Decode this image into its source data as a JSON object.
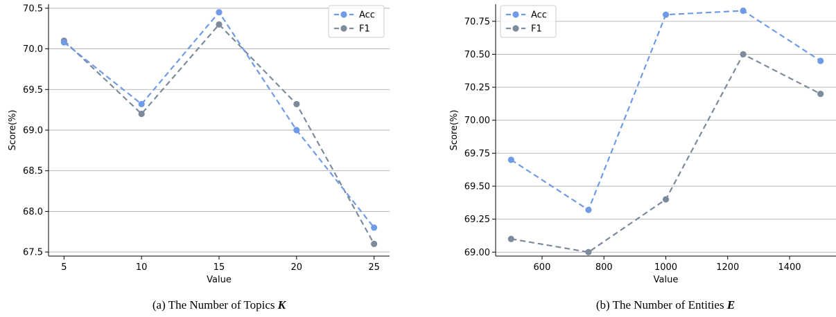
{
  "chart_data": [
    {
      "type": "line",
      "caption": {
        "prefix": "(a)  The Number of Topics ",
        "var": "K"
      },
      "xlabel": "Value",
      "ylabel": "Score(%)",
      "x": [
        5,
        10,
        15,
        20,
        25
      ],
      "xticks": [
        "5",
        "10",
        "15",
        "20",
        "25"
      ],
      "xlim": [
        4.0,
        26.0
      ],
      "ylim": [
        67.45,
        70.55
      ],
      "yticks": [
        "67.5",
        "68.0",
        "68.5",
        "69.0",
        "69.5",
        "70.0",
        "70.5"
      ],
      "ytick_values": [
        67.5,
        68.0,
        68.5,
        69.0,
        69.5,
        70.0,
        70.5
      ],
      "grid": "horizontal",
      "legend_position": "top-right",
      "series": [
        {
          "name": "Acc",
          "color": "#6f9be6",
          "values": [
            70.08,
            69.32,
            70.45,
            69.0,
            67.8
          ]
        },
        {
          "name": "F1",
          "color": "#7c8a9a",
          "values": [
            70.1,
            69.2,
            70.3,
            69.32,
            67.6
          ]
        }
      ]
    },
    {
      "type": "line",
      "caption": {
        "prefix": "(b)  The Number of Entities ",
        "var": "E"
      },
      "xlabel": "Value",
      "ylabel": "Score(%)",
      "x": [
        500,
        750,
        1000,
        1250,
        1500
      ],
      "xticks": [
        "600",
        "800",
        "1000",
        "1200",
        "1400"
      ],
      "xtick_values": [
        600,
        800,
        1000,
        1200,
        1400
      ],
      "xlim": [
        450,
        1550
      ],
      "ylim": [
        68.97,
        70.88
      ],
      "yticks": [
        "69.00",
        "69.25",
        "69.50",
        "69.75",
        "70.00",
        "70.25",
        "70.50",
        "70.75"
      ],
      "ytick_values": [
        69.0,
        69.25,
        69.5,
        69.75,
        70.0,
        70.25,
        70.5,
        70.75
      ],
      "grid": "horizontal",
      "legend_position": "top-left",
      "series": [
        {
          "name": "Acc",
          "color": "#6f9be6",
          "values": [
            69.7,
            69.32,
            70.8,
            70.83,
            70.45
          ]
        },
        {
          "name": "F1",
          "color": "#7c8a9a",
          "values": [
            69.1,
            69.0,
            69.4,
            70.5,
            70.2
          ]
        }
      ]
    }
  ]
}
